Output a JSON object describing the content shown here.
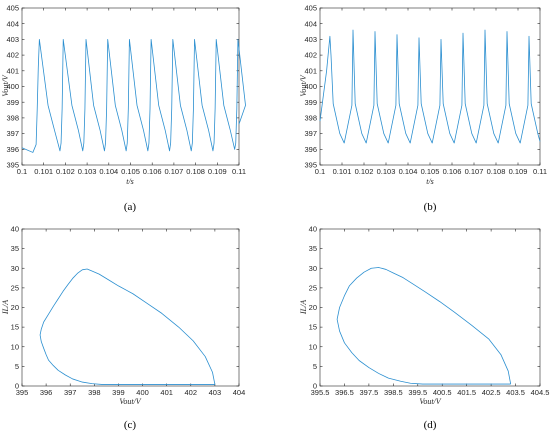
{
  "chart_data": [
    {
      "id": "a",
      "type": "line",
      "caption": "(a)",
      "xlabel": "t/s",
      "ylabel": "Vout/V",
      "xlim": [
        0.1,
        0.11
      ],
      "ylim": [
        395,
        405
      ],
      "xticks": [
        "0.1",
        "0.101",
        "0.102",
        "0.103",
        "0.104",
        "0.105",
        "0.106",
        "0.107",
        "0.108",
        "0.109",
        "0.11"
      ],
      "yticks": [
        "395",
        "396",
        "397",
        "398",
        "399",
        "400",
        "401",
        "402",
        "403",
        "404",
        "405"
      ],
      "color": "#2b8fd0",
      "series": [
        {
          "x": [
            0.1,
            0.1005,
            0.10065,
            0.1007,
            0.10075,
            0.1008,
            0.1012,
            0.1015,
            0.10175,
            0.1018,
            0.10185,
            0.1019,
            0.1023,
            0.1026,
            0.1028,
            0.10285,
            0.1029,
            0.10295,
            0.1033,
            0.1036,
            0.1038,
            0.10385,
            0.1039,
            0.10395,
            0.1043,
            0.1046,
            0.1048,
            0.10485,
            0.1049,
            0.10495,
            0.1053,
            0.1056,
            0.1058,
            0.10585,
            0.1059,
            0.10595,
            0.1063,
            0.1066,
            0.1068,
            0.10685,
            0.1069,
            0.10695,
            0.1073,
            0.1076,
            0.1078,
            0.10785,
            0.1079,
            0.10795,
            0.1083,
            0.1086,
            0.1088,
            0.10885,
            0.1089,
            0.10895,
            0.1093,
            0.1096,
            0.1098,
            0.10985,
            0.1099,
            0.10995,
            0.1103,
            0.11
          ],
          "y": [
            396.1,
            395.8,
            396.3,
            398.5,
            401.2,
            403.0,
            398.8,
            397.2,
            395.9,
            396.4,
            398.6,
            403.0,
            398.8,
            397.2,
            395.9,
            396.4,
            398.6,
            403.0,
            398.8,
            397.2,
            395.9,
            396.4,
            398.6,
            403.0,
            398.8,
            397.2,
            395.9,
            396.4,
            398.6,
            403.0,
            398.8,
            397.2,
            395.9,
            396.4,
            398.6,
            403.0,
            398.8,
            397.2,
            395.9,
            396.4,
            398.6,
            403.0,
            398.8,
            397.2,
            395.9,
            396.4,
            398.6,
            403.0,
            398.8,
            397.2,
            395.9,
            396.4,
            398.6,
            403.0,
            398.8,
            397.2,
            396.0,
            396.4,
            398.6,
            403.0,
            398.8,
            397.6
          ]
        }
      ]
    },
    {
      "id": "b",
      "type": "line",
      "caption": "(b)",
      "xlabel": "t/s",
      "ylabel": "Vout/V",
      "xlim": [
        0.1,
        0.11
      ],
      "ylim": [
        395,
        405
      ],
      "xticks": [
        "0.1",
        "0.101",
        "0.102",
        "0.103",
        "0.104",
        "0.105",
        "0.106",
        "0.107",
        "0.108",
        "0.109",
        "0.11"
      ],
      "yticks": [
        "395",
        "396",
        "397",
        "398",
        "399",
        "400",
        "401",
        "402",
        "403",
        "404",
        "405"
      ],
      "color": "#2b8fd0",
      "series": [
        {
          "x": [
            0.1,
            0.1003,
            0.10045,
            0.1005,
            0.1006,
            0.1009,
            0.1011,
            0.10145,
            0.1015,
            0.1016,
            0.1019,
            0.1021,
            0.10245,
            0.1025,
            0.1026,
            0.1029,
            0.1031,
            0.10345,
            0.1035,
            0.1036,
            0.1039,
            0.1041,
            0.10445,
            0.1045,
            0.1046,
            0.1049,
            0.1051,
            0.10545,
            0.1055,
            0.1056,
            0.1059,
            0.1061,
            0.10645,
            0.1065,
            0.1066,
            0.1069,
            0.1071,
            0.10745,
            0.1075,
            0.1076,
            0.1079,
            0.1081,
            0.10845,
            0.1085,
            0.1086,
            0.1089,
            0.1091,
            0.10945,
            0.1095,
            0.1096,
            0.1099,
            0.11
          ],
          "y": [
            397.8,
            401.0,
            403.2,
            402.0,
            398.9,
            397.0,
            396.4,
            398.8,
            403.6,
            398.9,
            397.0,
            396.4,
            398.8,
            403.5,
            398.9,
            397.0,
            396.4,
            398.8,
            403.3,
            398.9,
            397.0,
            396.4,
            398.8,
            403.1,
            398.9,
            397.0,
            396.4,
            398.8,
            403.0,
            398.9,
            397.0,
            396.4,
            398.8,
            403.4,
            398.9,
            397.0,
            396.4,
            398.8,
            403.6,
            398.9,
            397.0,
            396.4,
            398.8,
            403.5,
            398.9,
            397.0,
            396.4,
            398.8,
            403.2,
            398.9,
            397.0,
            396.5
          ]
        }
      ]
    },
    {
      "id": "c",
      "type": "line",
      "caption": "(c)",
      "xlabel": "Vout/V",
      "ylabel": "IL/A",
      "xlim": [
        395,
        404
      ],
      "ylim": [
        0,
        40
      ],
      "xticks": [
        "395",
        "396",
        "397",
        "398",
        "399",
        "400",
        "401",
        "402",
        "403",
        "404"
      ],
      "yticks": [
        "0",
        "5",
        "10",
        "15",
        "20",
        "25",
        "30",
        "35",
        "40"
      ],
      "color": "#2b8fd0",
      "series": [
        {
          "x": [
            403.0,
            402.9,
            402.6,
            402.1,
            401.5,
            400.8,
            400.2,
            399.6,
            399.0,
            398.6,
            398.2,
            397.9,
            397.7,
            397.5,
            397.3,
            397.1,
            396.9,
            396.7,
            396.5,
            396.3,
            396.1,
            395.9,
            395.8,
            395.75,
            395.8,
            395.9,
            396.0,
            396.1,
            396.3,
            396.5,
            396.8,
            397.1,
            397.5,
            397.9,
            398.3,
            398.7,
            399.0,
            399.3,
            400.0,
            400.8,
            401.5,
            402.1,
            402.6,
            402.9,
            403.0,
            403.0
          ],
          "y": [
            0.4,
            3.5,
            7.5,
            11.5,
            15.0,
            18.5,
            21.0,
            23.5,
            25.5,
            27.0,
            28.5,
            29.3,
            29.8,
            29.6,
            28.7,
            27.4,
            25.8,
            24.1,
            22.2,
            20.3,
            18.3,
            16.3,
            14.5,
            13.0,
            11.3,
            9.6,
            8.0,
            6.6,
            5.2,
            4.0,
            2.8,
            1.8,
            1.0,
            0.6,
            0.4,
            0.4,
            0.4,
            0.4,
            0.4,
            0.4,
            0.4,
            0.4,
            0.4,
            0.4,
            0.4,
            0.4
          ]
        }
      ]
    },
    {
      "id": "d",
      "type": "line",
      "caption": "(d)",
      "xlabel": "Vout/V",
      "ylabel": "IL/A",
      "xlim": [
        395.5,
        404.5
      ],
      "ylim": [
        0,
        40
      ],
      "xticks": [
        "395.5",
        "396.5",
        "397.5",
        "398.5",
        "399.5",
        "400.5",
        "401.5",
        "402.5",
        "403.5",
        "404.5"
      ],
      "yticks": [
        "0",
        "5",
        "10",
        "15",
        "20",
        "25",
        "30",
        "35",
        "40"
      ],
      "color": "#2b8fd0",
      "series": [
        {
          "x": [
            403.3,
            403.2,
            402.9,
            402.4,
            401.7,
            401.0,
            400.4,
            399.8,
            399.3,
            398.9,
            398.5,
            398.2,
            397.9,
            397.6,
            397.3,
            397.0,
            396.7,
            396.5,
            396.3,
            396.2,
            396.3,
            396.5,
            396.8,
            397.1,
            397.5,
            397.9,
            398.3,
            398.8,
            399.2,
            399.7,
            400.3,
            401.0,
            401.7,
            402.4,
            402.9,
            403.2,
            403.3
          ],
          "y": [
            0.5,
            3.8,
            8.0,
            12.0,
            15.5,
            18.8,
            21.5,
            24.0,
            26.0,
            27.6,
            28.8,
            29.7,
            30.2,
            30.0,
            29.0,
            27.5,
            25.5,
            23.0,
            20.0,
            17.0,
            14.0,
            11.0,
            8.5,
            6.5,
            4.7,
            3.2,
            2.0,
            1.2,
            0.7,
            0.5,
            0.5,
            0.5,
            0.5,
            0.5,
            0.5,
            0.5,
            0.5
          ]
        }
      ]
    }
  ]
}
